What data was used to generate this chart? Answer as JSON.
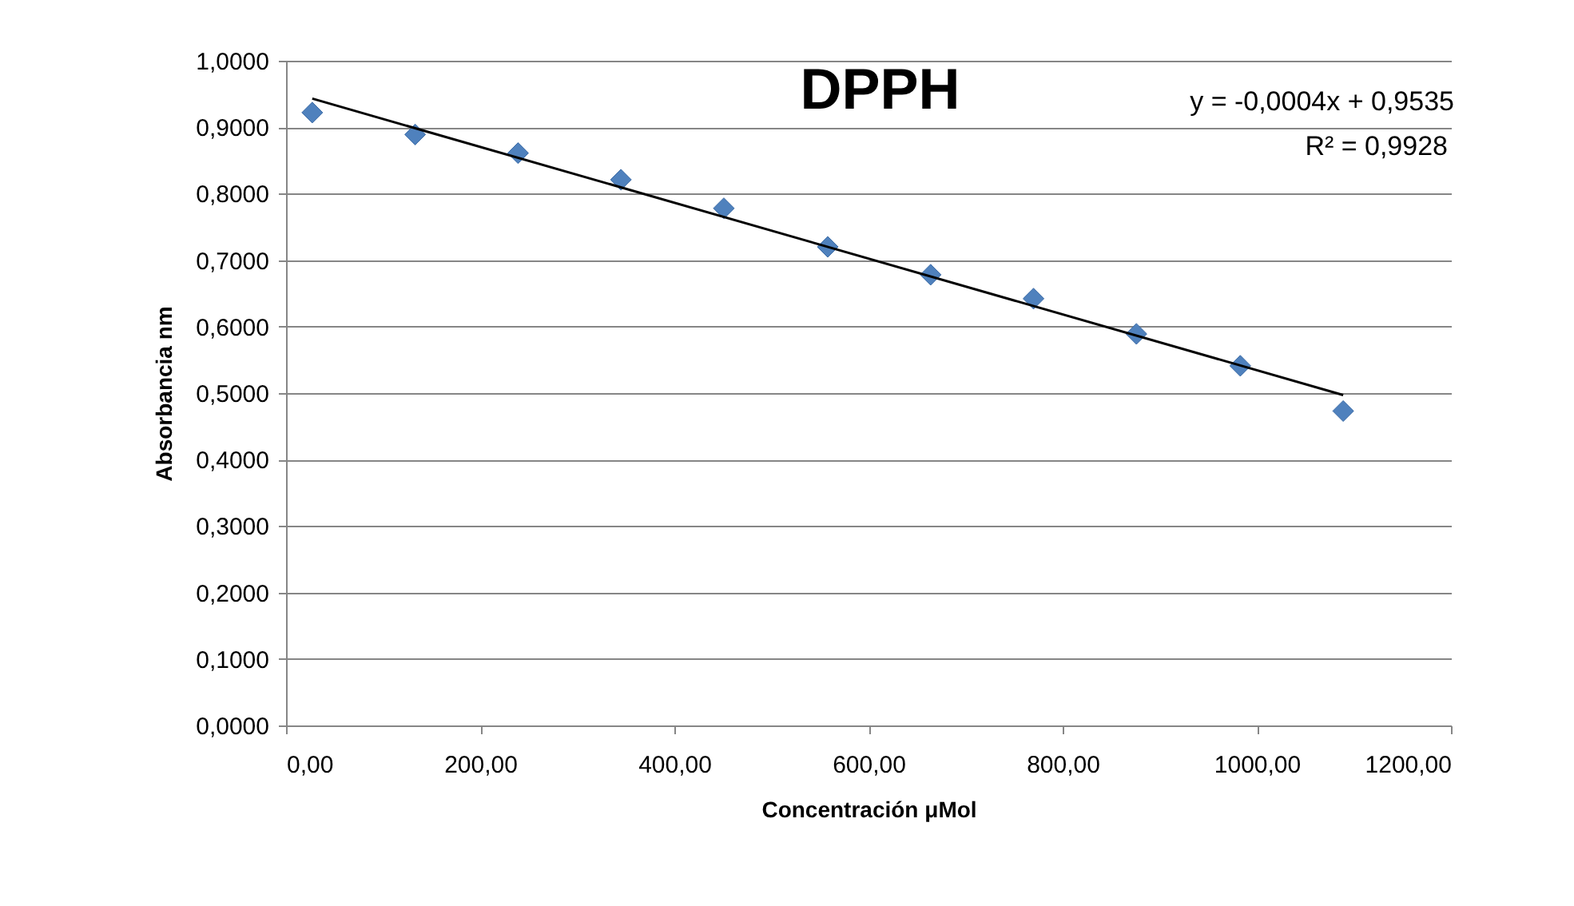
{
  "chart_data": {
    "type": "scatter",
    "title": "DPPH",
    "xlabel": "Concentración μMol",
    "ylabel": "Absorbancia nm",
    "annotations": [
      "y = -0,0004x + 0,9535",
      "R² = 0,9928"
    ],
    "series": [
      {
        "color": "#4f81bd",
        "marker": "diamond",
        "x": [
          27,
          133,
          239,
          345,
          451,
          558,
          664,
          770,
          876,
          983,
          1089
        ],
        "values": [
          0.922,
          0.889,
          0.861,
          0.821,
          0.778,
          0.72,
          0.678,
          0.642,
          0.589,
          0.541,
          0.473
        ]
      },
      {
        "type": "line",
        "color": "#000000",
        "line_style": "solid",
        "x": [
          27,
          1089
        ],
        "values": [
          0.943,
          0.497
        ]
      }
    ],
    "xlim": [
      0,
      1200
    ],
    "ylim": [
      0,
      1.0
    ],
    "xticks": [
      {
        "value": 0,
        "label": "0,00"
      },
      {
        "value": 200,
        "label": "200,00"
      },
      {
        "value": 400,
        "label": "400,00"
      },
      {
        "value": 600,
        "label": "600,00"
      },
      {
        "value": 800,
        "label": "800,00"
      },
      {
        "value": 1000,
        "label": "1000,00"
      },
      {
        "value": 1200,
        "label": "1200,00"
      }
    ],
    "yticks": [
      {
        "value": 0,
        "label": "0,0000"
      },
      {
        "value": 0.1,
        "label": "0,1000"
      },
      {
        "value": 0.2,
        "label": "0,2000"
      },
      {
        "value": 0.3,
        "label": "0,3000"
      },
      {
        "value": 0.4,
        "label": "0,4000"
      },
      {
        "value": 0.5,
        "label": "0,5000"
      },
      {
        "value": 0.6,
        "label": "0,6000"
      },
      {
        "value": 0.7,
        "label": "0,7000"
      },
      {
        "value": 0.8,
        "label": "0,8000"
      },
      {
        "value": 0.9,
        "label": "0,9000"
      },
      {
        "value": 1.0,
        "label": "1,0000"
      }
    ],
    "grid": "y"
  }
}
